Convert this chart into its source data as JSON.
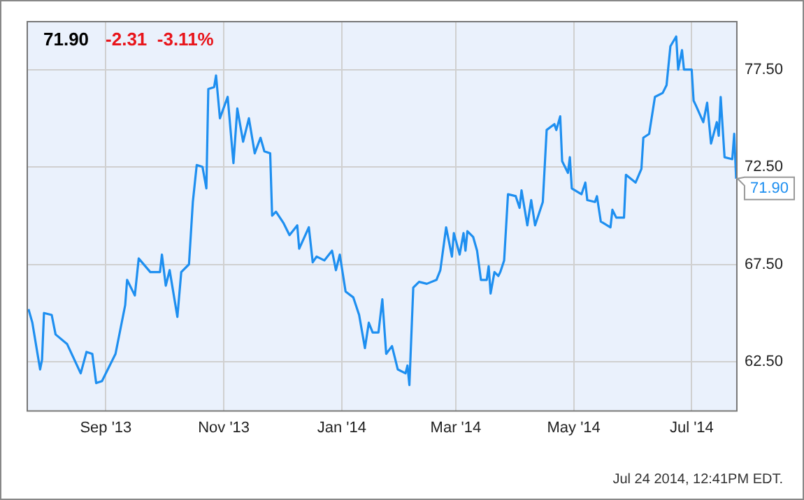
{
  "chart_data": {
    "type": "line",
    "title": "71.90",
    "subtitle": "-2.31  -3.11%",
    "x": [
      "2013-07-23",
      "2013-07-25",
      "2013-07-29",
      "2013-07-30",
      "2013-07-31",
      "2013-08-04",
      "2013-08-06",
      "2013-08-12",
      "2013-08-19",
      "2013-08-22",
      "2013-08-25",
      "2013-08-27",
      "2013-08-30",
      "2013-09-06",
      "2013-09-11",
      "2013-09-12",
      "2013-09-16",
      "2013-09-18",
      "2013-09-24",
      "2013-09-29",
      "2013-09-30",
      "2013-10-02",
      "2013-10-04",
      "2013-10-08",
      "2013-10-10",
      "2013-10-14",
      "2013-10-16",
      "2013-10-18",
      "2013-10-21",
      "2013-10-23",
      "2013-10-24",
      "2013-10-27",
      "2013-10-28",
      "2013-10-30",
      "2013-11-03",
      "2013-11-06",
      "2013-11-08",
      "2013-11-11",
      "2013-11-14",
      "2013-11-17",
      "2013-11-20",
      "2013-11-22",
      "2013-11-25",
      "2013-11-26",
      "2013-11-28",
      "2013-12-02",
      "2013-12-05",
      "2013-12-09",
      "2013-12-10",
      "2013-12-15",
      "2013-12-17",
      "2013-12-19",
      "2013-12-23",
      "2013-12-27",
      "2013-12-29",
      "2013-12-31",
      "2014-01-03",
      "2014-01-07",
      "2014-01-10",
      "2014-01-13",
      "2014-01-15",
      "2014-01-17",
      "2014-01-20",
      "2014-01-22",
      "2014-01-24",
      "2014-01-27",
      "2014-01-30",
      "2014-02-03",
      "2014-02-04",
      "2014-02-05",
      "2014-02-07",
      "2014-02-10",
      "2014-02-14",
      "2014-02-19",
      "2014-02-21",
      "2014-02-24",
      "2014-02-27",
      "2014-02-28",
      "2014-03-03",
      "2014-03-05",
      "2014-03-06",
      "2014-03-07",
      "2014-03-10",
      "2014-03-12",
      "2014-03-14",
      "2014-03-17",
      "2014-03-18",
      "2014-03-19",
      "2014-03-21",
      "2014-03-23",
      "2014-03-24",
      "2014-03-26",
      "2014-03-28",
      "2014-04-01",
      "2014-04-03",
      "2014-04-04",
      "2014-04-07",
      "2014-04-09",
      "2014-04-11",
      "2014-04-15",
      "2014-04-17",
      "2014-04-21",
      "2014-04-22",
      "2014-04-24",
      "2014-04-25",
      "2014-04-28",
      "2014-04-29",
      "2014-04-30",
      "2014-05-05",
      "2014-05-07",
      "2014-05-08",
      "2014-05-12",
      "2014-05-13",
      "2014-05-15",
      "2014-05-20",
      "2014-05-21",
      "2014-05-23",
      "2014-05-27",
      "2014-05-28",
      "2014-06-02",
      "2014-06-05",
      "2014-06-06",
      "2014-06-09",
      "2014-06-12",
      "2014-06-16",
      "2014-06-18",
      "2014-06-20",
      "2014-06-23",
      "2014-06-24",
      "2014-06-26",
      "2014-06-27",
      "2014-07-01",
      "2014-07-02",
      "2014-07-03",
      "2014-07-07",
      "2014-07-09",
      "2014-07-11",
      "2014-07-14",
      "2014-07-15",
      "2014-07-16",
      "2014-07-18",
      "2014-07-22",
      "2014-07-23",
      "2014-07-24"
    ],
    "series": [
      {
        "color": "#1e8ff0",
        "values": [
          65.2,
          64.5,
          62.1,
          62.6,
          65.0,
          64.9,
          63.9,
          63.4,
          61.9,
          63.0,
          62.9,
          61.4,
          61.5,
          62.9,
          65.4,
          66.7,
          65.9,
          67.8,
          67.1,
          67.1,
          68.0,
          66.4,
          67.2,
          64.8,
          67.1,
          67.5,
          70.7,
          72.6,
          72.5,
          71.4,
          76.5,
          76.6,
          77.2,
          75.0,
          76.1,
          72.7,
          75.5,
          73.8,
          75.0,
          73.2,
          74.0,
          73.3,
          73.2,
          70.0,
          70.2,
          69.6,
          69.0,
          69.5,
          68.3,
          69.4,
          67.6,
          67.9,
          67.7,
          68.2,
          67.2,
          68.0,
          66.1,
          65.8,
          64.9,
          63.2,
          64.5,
          64.0,
          64.0,
          65.7,
          62.9,
          63.3,
          62.1,
          61.9,
          62.3,
          61.3,
          66.3,
          66.6,
          66.5,
          66.7,
          67.2,
          69.4,
          67.9,
          69.1,
          68.0,
          69.1,
          68.2,
          69.2,
          68.9,
          68.2,
          66.7,
          66.7,
          67.4,
          66.0,
          67.1,
          66.9,
          67.1,
          67.7,
          71.1,
          71.0,
          70.4,
          71.3,
          69.5,
          70.8,
          69.5,
          70.7,
          74.4,
          74.7,
          74.4,
          75.1,
          72.8,
          72.2,
          73.0,
          71.4,
          71.1,
          71.7,
          70.8,
          70.7,
          71.0,
          69.7,
          69.4,
          70.3,
          69.9,
          69.9,
          72.1,
          71.7,
          72.4,
          74.0,
          74.2,
          76.1,
          76.3,
          76.7,
          78.7,
          79.2,
          77.5,
          78.5,
          77.5,
          77.5,
          75.9,
          75.7,
          74.8,
          75.8,
          73.7,
          74.8,
          74.1,
          76.1,
          73.0,
          72.9,
          74.2,
          71.9
        ]
      }
    ],
    "xlim": [
      "2013-07-22",
      "2014-07-24"
    ],
    "xticks": [
      {
        "value": "2013-09-01",
        "label": "Sep '13"
      },
      {
        "value": "2013-11-01",
        "label": "Nov '13"
      },
      {
        "value": "2014-01-01",
        "label": "Jan '14"
      },
      {
        "value": "2014-03-01",
        "label": "Mar '14"
      },
      {
        "value": "2014-05-01",
        "label": "May '14"
      },
      {
        "value": "2014-07-01",
        "label": "Jul '14"
      }
    ],
    "ylim": [
      60,
      80
    ],
    "yticks": [
      {
        "value": 62.5,
        "label": "62.50"
      },
      {
        "value": 67.5,
        "label": "67.50"
      },
      {
        "value": 72.5,
        "label": "72.50"
      },
      {
        "value": 77.5,
        "label": "77.50"
      }
    ],
    "grid": true,
    "marker": "none",
    "line_style": "solid",
    "annotations": [
      "Jul 24 2014, 12:41PM EDT.",
      {
        "text": "71.90",
        "x": "2014-07-24",
        "y": 71.9
      }
    ]
  }
}
